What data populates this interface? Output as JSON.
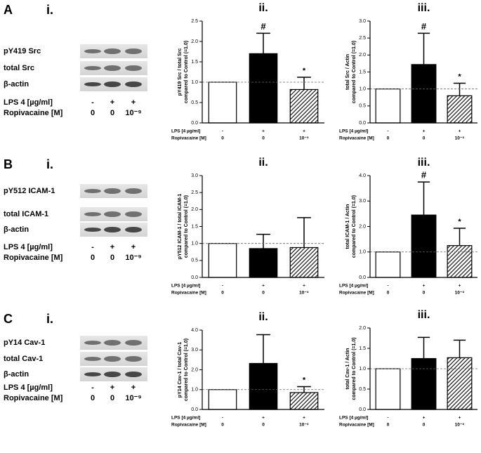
{
  "panels": [
    {
      "letter": "A",
      "blot": {
        "label": "i.",
        "rows": [
          "pY419 Src",
          "total Src",
          "β-actin"
        ],
        "conditions": [
          {
            "label": "LPS 4 [µg/ml]",
            "values": [
              "-",
              "+",
              "+"
            ]
          },
          {
            "label": "Ropivacaine [M]",
            "values": [
              "0",
              "0",
              "10⁻⁹"
            ]
          }
        ]
      }
    },
    {
      "letter": "B",
      "blot": {
        "label": "i.",
        "rows": [
          "pY512 ICAM-1",
          "total ICAM-1",
          "β-actin"
        ],
        "conditions": [
          {
            "label": "LPS 4 [µg/ml]",
            "values": [
              "-",
              "+",
              "+"
            ]
          },
          {
            "label": "Ropivacaine [M]",
            "values": [
              "0",
              "0",
              "10⁻⁹"
            ]
          }
        ]
      }
    },
    {
      "letter": "C",
      "blot": {
        "label": "i.",
        "rows": [
          "pY14 Cav-1",
          "total Cav-1",
          "β-actin"
        ],
        "conditions": [
          {
            "label": "LPS 4 [µg/ml]",
            "values": [
              "-",
              "+",
              "+"
            ]
          },
          {
            "label": "Ropivacaine [M]",
            "values": [
              "0",
              "0",
              "10⁻⁹"
            ]
          }
        ]
      }
    }
  ],
  "chart_data": [
    {
      "type": "bar",
      "title": "ii.",
      "ylabel": [
        "pY419 Src / total Src",
        "compared to Control (=1.0)"
      ],
      "values": [
        1.0,
        1.7,
        0.82
      ],
      "errors": [
        0,
        0.5,
        0.3
      ],
      "markers": [
        null,
        "#",
        "*"
      ],
      "fills": [
        "white",
        "black",
        "hatched"
      ],
      "ylim": [
        0,
        2.5
      ],
      "yticks": [
        {
          "value": 0,
          "label": "0.0"
        },
        {
          "value": 0.5,
          "label": "0.5"
        },
        {
          "value": 1,
          "label": "1.0"
        },
        {
          "value": 1.5,
          "label": "1.5"
        },
        {
          "value": 2,
          "label": "2.0"
        },
        {
          "value": 2.5,
          "label": "2.5"
        }
      ],
      "refline": 1,
      "conditions": [
        {
          "label": "LPS [4 µg/ml]",
          "values": [
            "-",
            "+",
            "+"
          ]
        },
        {
          "label": "Ropivacaine [M]",
          "values": [
            "0",
            "0",
            "10⁻⁹"
          ]
        }
      ]
    },
    {
      "type": "bar",
      "title": "iii.",
      "ylabel": [
        "total Src / Actin",
        "compared to Control (=1.0)"
      ],
      "values": [
        1.0,
        1.72,
        0.8
      ],
      "errors": [
        0,
        0.92,
        0.37
      ],
      "markers": [
        null,
        "#",
        "*"
      ],
      "fills": [
        "white",
        "black",
        "hatched"
      ],
      "ylim": [
        0,
        3
      ],
      "yticks": [
        {
          "value": 0,
          "label": "0.0"
        },
        {
          "value": 0.5,
          "label": "0.5"
        },
        {
          "value": 1,
          "label": "1.0"
        },
        {
          "value": 1.5,
          "label": "1.5"
        },
        {
          "value": 2,
          "label": "2.0"
        },
        {
          "value": 2.5,
          "label": "2.5"
        },
        {
          "value": 3,
          "label": "3.0"
        }
      ],
      "refline": 1,
      "conditions": [
        {
          "label": "LPS [4 µg/ml]",
          "values": [
            "-",
            "+",
            "+"
          ]
        },
        {
          "label": "Ropivacaine [M]",
          "values": [
            "0",
            "0",
            "10⁻⁹"
          ]
        }
      ]
    },
    {
      "type": "bar",
      "title": "ii.",
      "ylabel": [
        "pY512 ICAM-1 / total ICAM-1",
        "compared to Control (=1.0)"
      ],
      "values": [
        1.0,
        0.85,
        0.88
      ],
      "errors": [
        0,
        0.42,
        0.88
      ],
      "markers": [
        null,
        null,
        null
      ],
      "fills": [
        "white",
        "black",
        "hatched"
      ],
      "ylim": [
        0,
        3
      ],
      "yticks": [
        {
          "value": 0,
          "label": "0.0"
        },
        {
          "value": 0.5,
          "label": "0.5"
        },
        {
          "value": 1,
          "label": "1.0"
        },
        {
          "value": 1.5,
          "label": "1.5"
        },
        {
          "value": 2,
          "label": "2.0"
        },
        {
          "value": 2.5,
          "label": "2.5"
        },
        {
          "value": 3,
          "label": "3.0"
        }
      ],
      "refline": 1,
      "conditions": [
        {
          "label": "LPS [4 µg/ml]",
          "values": [
            "-",
            "+",
            "+"
          ]
        },
        {
          "label": "Ropivacaine [M]",
          "values": [
            "0",
            "0",
            "10⁻⁹"
          ]
        }
      ]
    },
    {
      "type": "bar",
      "title": "iii.",
      "ylabel": [
        "total ICAM-1 / Actin",
        "compared to Control (=1.0)"
      ],
      "values": [
        1.0,
        2.45,
        1.25
      ],
      "errors": [
        0,
        1.3,
        0.68
      ],
      "markers": [
        null,
        "#",
        "*"
      ],
      "fills": [
        "white",
        "black",
        "hatched"
      ],
      "ylim": [
        0,
        4
      ],
      "yticks": [
        {
          "value": 0,
          "label": "0.0"
        },
        {
          "value": 1,
          "label": "1.0"
        },
        {
          "value": 2,
          "label": "2.0"
        },
        {
          "value": 3,
          "label": "3.0"
        },
        {
          "value": 4,
          "label": "4.0"
        }
      ],
      "refline": 1,
      "conditions": [
        {
          "label": "LPS [4 µg/ml]",
          "values": [
            "-",
            "+",
            "+"
          ]
        },
        {
          "label": "Ropivacaine [M]",
          "values": [
            "0",
            "0",
            "10⁻⁹"
          ]
        }
      ]
    },
    {
      "type": "bar",
      "title": "ii.",
      "ylabel": [
        "pY14 Cav-1 / total Cav-1",
        "compared to Control (=1.0)"
      ],
      "values": [
        1.0,
        2.32,
        0.85
      ],
      "errors": [
        0,
        1.45,
        0.3
      ],
      "markers": [
        null,
        null,
        "*"
      ],
      "fills": [
        "white",
        "black",
        "hatched"
      ],
      "ylim": [
        0,
        4
      ],
      "yticks": [
        {
          "value": 0,
          "label": "0.0"
        },
        {
          "value": 1,
          "label": "1.0"
        },
        {
          "value": 2,
          "label": "2.0"
        },
        {
          "value": 3,
          "label": "3.0"
        },
        {
          "value": 4,
          "label": "4.0"
        }
      ],
      "refline": 1,
      "conditions": [
        {
          "label": "LPS [4 µg/ml]",
          "values": [
            "-",
            "+",
            "+"
          ]
        },
        {
          "label": "Ropivacaine [M]",
          "values": [
            "0",
            "0",
            "10⁻⁹"
          ]
        }
      ]
    },
    {
      "type": "bar",
      "title": "iii.",
      "ylabel": [
        "total Cav-1 / Actin",
        "compared to Control (=1.0)"
      ],
      "values": [
        1.0,
        1.25,
        1.27
      ],
      "errors": [
        0,
        0.52,
        0.43
      ],
      "markers": [
        null,
        null,
        null
      ],
      "fills": [
        "white",
        "black",
        "hatched"
      ],
      "ylim": [
        0,
        2
      ],
      "yticks": [
        {
          "value": 0,
          "label": "0.0"
        },
        {
          "value": 0.5,
          "label": "0.5"
        },
        {
          "value": 1,
          "label": "1.0"
        },
        {
          "value": 1.5,
          "label": "1.5"
        },
        {
          "value": 2,
          "label": "2.0"
        }
      ],
      "refline": 1,
      "conditions": [
        {
          "label": "LPS [4 µg/ml]",
          "values": [
            "-",
            "+",
            "+"
          ]
        },
        {
          "label": "Ropivacaine [M]",
          "values": [
            "0",
            "0",
            "10⁻⁹"
          ]
        }
      ]
    }
  ]
}
